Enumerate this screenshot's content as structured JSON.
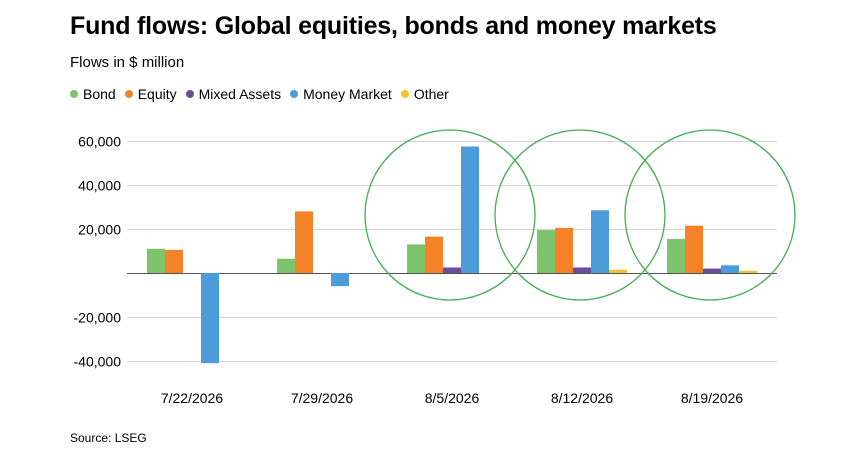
{
  "chart_data": {
    "type": "bar",
    "title": "Fund flows: Global equities, bonds and money markets",
    "subtitle": "Flows in $ million",
    "source": "Source: LSEG",
    "categories": [
      "7/22/2026",
      "7/29/2026",
      "8/5/2026",
      "8/12/2026",
      "8/19/2026"
    ],
    "ylim": [
      -40000,
      60000
    ],
    "yticks": [
      -40000,
      -20000,
      0,
      20000,
      40000,
      60000
    ],
    "ytick_labels": [
      "-40,000",
      "-20,000",
      "",
      "20,000",
      "40,000",
      "60,000"
    ],
    "grid": true,
    "legend_position": "top-left",
    "series": [
      {
        "name": "Bond",
        "color": "#7cc36b",
        "values": [
          11000,
          6500,
          13000,
          19500,
          15500
        ]
      },
      {
        "name": "Equity",
        "color": "#f58226",
        "values": [
          10500,
          28000,
          16500,
          20500,
          21500
        ]
      },
      {
        "name": "Mixed Assets",
        "color": "#6a4c9c",
        "values": [
          0,
          0,
          2500,
          2500,
          2000
        ]
      },
      {
        "name": "Money Market",
        "color": "#4b9cd8",
        "values": [
          -41000,
          -6000,
          57500,
          28500,
          3500
        ]
      },
      {
        "name": "Other",
        "color": "#f2c12e",
        "values": [
          0,
          0,
          0,
          1500,
          1000
        ]
      }
    ],
    "annotations": {
      "type": "circle",
      "color": "#3fae56",
      "categories": [
        "8/5/2026",
        "8/12/2026",
        "8/19/2026"
      ]
    }
  }
}
